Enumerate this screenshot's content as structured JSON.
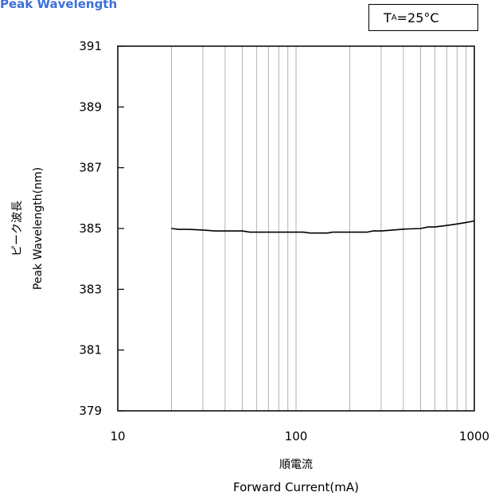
{
  "title": "Peak Wavelength",
  "condition": {
    "prefix": "T",
    "sub": "A",
    "suffix": "=25°C"
  },
  "chart_data": {
    "type": "line",
    "title": "Peak Wavelength",
    "xlabel_jp": "順電流",
    "xlabel": "Forward Current(mA)",
    "ylabel_jp": "ピーク波長",
    "ylabel": "Peak Wavelength(nm)",
    "xscale": "log",
    "xlim": [
      10,
      1000
    ],
    "ylim": [
      379,
      391
    ],
    "xticks": [
      "10",
      "100",
      "1000"
    ],
    "yticks": [
      "391",
      "389",
      "387",
      "385",
      "383",
      "381",
      "379"
    ],
    "grid": "vertical minor log grid",
    "series": [
      {
        "x": [
          20,
          22,
          25,
          30,
          35,
          40,
          50,
          55,
          60,
          70,
          80,
          100,
          110,
          120,
          130,
          150,
          160,
          200,
          250,
          270,
          300,
          350,
          400,
          500,
          550,
          600,
          700,
          800,
          900,
          1000
        ],
        "y": [
          385.0,
          384.97,
          384.97,
          384.95,
          384.92,
          384.92,
          384.92,
          384.88,
          384.88,
          384.88,
          384.88,
          384.88,
          384.88,
          384.85,
          384.85,
          384.85,
          384.88,
          384.88,
          384.88,
          384.92,
          384.92,
          384.95,
          384.98,
          385.0,
          385.05,
          385.05,
          385.1,
          385.15,
          385.2,
          385.25
        ]
      }
    ]
  }
}
